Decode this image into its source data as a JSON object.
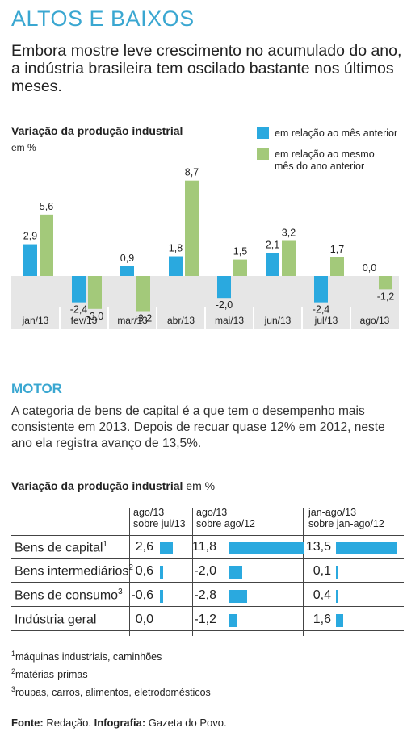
{
  "title": "ALTOS E BAIXOS",
  "lead": "Embora mostre leve crescimento no acumulado do ano, a indústria brasileira tem oscilado bastante nos últimos meses.",
  "colors": {
    "blue": "#2aa9df",
    "green": "#a3c97a",
    "bg": "#e6e6e6",
    "accent": "#3aa7d1"
  },
  "chart_data": {
    "type": "bar",
    "title": "Variação da produção industrial",
    "ylabel": "em %",
    "categories": [
      "jan/13",
      "fev/13",
      "mar/13",
      "abr/13",
      "mai/13",
      "jun/13",
      "jul/13",
      "ago/13"
    ],
    "series": [
      {
        "name": "em relação ao mês anterior",
        "values": [
          2.9,
          -2.4,
          0.9,
          1.8,
          -2.0,
          2.1,
          -2.4,
          0.0
        ],
        "labels": [
          "2,9",
          "-2,4",
          "0,9",
          "1,8",
          "-2,0",
          "2,1",
          "-2,4",
          "0,0"
        ]
      },
      {
        "name": "em relação ao mesmo mês do ano anterior",
        "values": [
          5.6,
          -3.0,
          -3.2,
          8.7,
          1.5,
          3.2,
          1.7,
          -1.2
        ],
        "labels": [
          "5,6",
          "-3,0",
          "-3,2",
          "8,7",
          "1,5",
          "3,2",
          "1,7",
          "-1,2"
        ]
      }
    ],
    "legend": [
      "em relação ao mês anterior",
      "em relação ao mesmo",
      "mês do ano anterior"
    ]
  },
  "motor": {
    "title": "MOTOR",
    "text": "A categoria de bens de capital é a que tem o desempenho mais consistente em 2013. Depois de recuar quase 12% em 2012, neste ano ela registra avanço de 13,5%."
  },
  "table": {
    "title": "Variação da produção industrial",
    "unit": "em %",
    "columns": [
      {
        "line1": "ago/13",
        "line2": "sobre jul/13"
      },
      {
        "line1": "ago/13",
        "line2": "sobre ago/12"
      },
      {
        "line1": "jan-ago/13",
        "line2": "sobre jan-ago/12"
      }
    ],
    "rows": [
      {
        "label": "Bens de capital",
        "sup": "1",
        "values": [
          2.6,
          11.8,
          13.5
        ],
        "texts": [
          "2,6",
          "11,8",
          "13,5"
        ]
      },
      {
        "label": "Bens intermediários",
        "sup": "2",
        "values": [
          0.6,
          -2.0,
          0.1
        ],
        "texts": [
          "0,6",
          "-2,0",
          "0,1"
        ]
      },
      {
        "label": "Bens de consumo",
        "sup": "3",
        "values": [
          -0.6,
          -2.8,
          0.4
        ],
        "texts": [
          "-0,6",
          "-2,8",
          "0,4"
        ]
      },
      {
        "label": "Indústria geral",
        "sup": "",
        "values": [
          0.0,
          -1.2,
          1.6
        ],
        "texts": [
          "0,0",
          "-1,2",
          "1,6"
        ]
      }
    ]
  },
  "footnotes": [
    {
      "sup": "1",
      "text": "máquinas industriais, caminhões"
    },
    {
      "sup": "2",
      "text": "matérias-primas"
    },
    {
      "sup": "3",
      "text": "roupas, carros, alimentos, eletrodomésticos"
    }
  ],
  "source": {
    "fonte_label": "Fonte:",
    "fonte": " Redação. ",
    "info_label": "Infografia:",
    "info": " Gazeta do Povo."
  }
}
